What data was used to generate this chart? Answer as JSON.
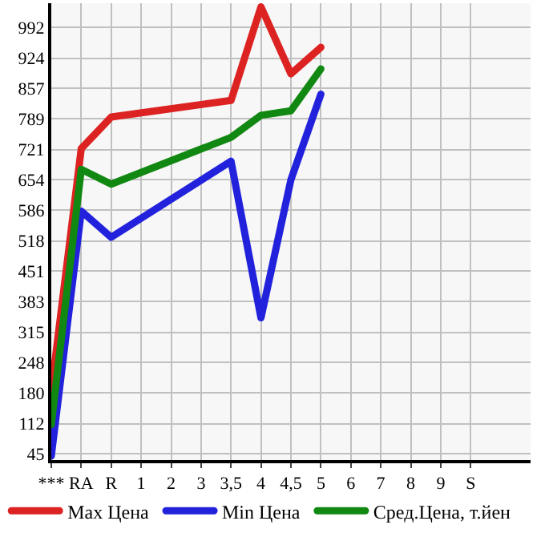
{
  "chart_data": {
    "type": "line",
    "categories": [
      "***",
      "RA",
      "R",
      "1",
      "2",
      "3",
      "3,5",
      "4",
      "4,5",
      "5",
      "6",
      "7",
      "8",
      "9",
      "S",
      null
    ],
    "series": [
      {
        "name": "Max Цена",
        "color": "#dd2222",
        "values": [
          184,
          723,
          793,
          null,
          null,
          null,
          830,
          1038,
          889,
          948,
          null,
          null,
          null,
          null,
          null,
          null
        ]
      },
      {
        "name": "Min Цена",
        "color": "#2222dd",
        "values": [
          40,
          584,
          526,
          null,
          null,
          null,
          695,
          347,
          654,
          844,
          null,
          null,
          null,
          null,
          null,
          null
        ]
      },
      {
        "name": "Сред.Цена, т.йен",
        "color": "#118811",
        "values": [
          110,
          677,
          644,
          null,
          null,
          null,
          748,
          797,
          807,
          900,
          null,
          null,
          null,
          null,
          null,
          null
        ]
      }
    ],
    "ylim": [
      31,
      1046
    ],
    "yticks": [
      45,
      112,
      180,
      248,
      315,
      383,
      451,
      518,
      586,
      654,
      721,
      789,
      857,
      924,
      992
    ],
    "grid": true,
    "legend": "bottom",
    "marker": "none",
    "line_style": "solid"
  }
}
